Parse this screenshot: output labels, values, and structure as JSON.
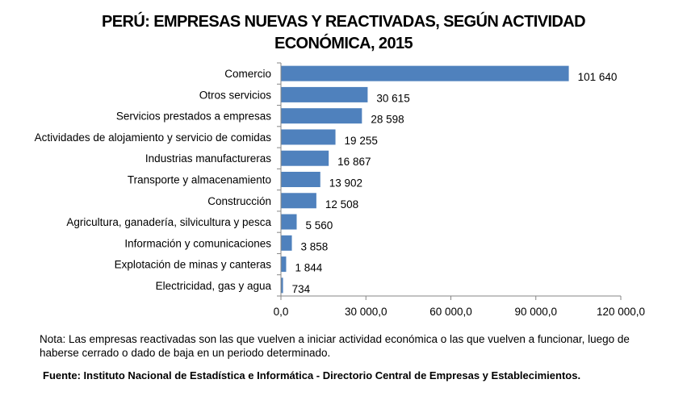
{
  "title_line1": "PERÚ: EMPRESAS NUEVAS Y REACTIVADAS, SEGÚN ACTIVIDAD",
  "title_line2": "ECONÓMICA, 2015",
  "note": "Nota: Las empresas reactivadas son las que vuelven a iniciar actividad económica o las que vuelven a funcionar, luego de haberse cerrado o dado de baja en un periodo determinado.",
  "source": "Fuente:  Instituto Nacional de Estadística e Informática - Directorio Central de Empresas y Establecimientos.",
  "chart_data": {
    "type": "bar",
    "orientation": "horizontal",
    "categories": [
      "Comercio",
      "Otros servicios",
      "Servicios prestados a empresas",
      "Actividades de alojamiento y servicio de comidas",
      "Industrias manufactureras",
      "Transporte y almacenamiento",
      "Construcción",
      "Agricultura, ganadería, silvicultura y pesca",
      "Información y comunicaciones",
      "Explotación de minas y canteras",
      "Electricidad, gas y agua"
    ],
    "values": [
      101640,
      30615,
      28598,
      19255,
      16867,
      13902,
      12508,
      5560,
      3858,
      1844,
      734
    ],
    "value_labels": [
      "101 640",
      "30 615",
      "28 598",
      "19 255",
      "16 867",
      "13 902",
      "12 508",
      "5 560",
      "3 858",
      "1 844",
      "734"
    ],
    "xlim": [
      0,
      120000
    ],
    "xticks": [
      0,
      30000,
      60000,
      90000,
      120000
    ],
    "xtick_labels": [
      "0,0",
      "30 000,0",
      "60 000,0",
      "90 000,0",
      "120 000,0"
    ],
    "grid": false,
    "legend": "none",
    "bar_color": "#4f81bd"
  }
}
